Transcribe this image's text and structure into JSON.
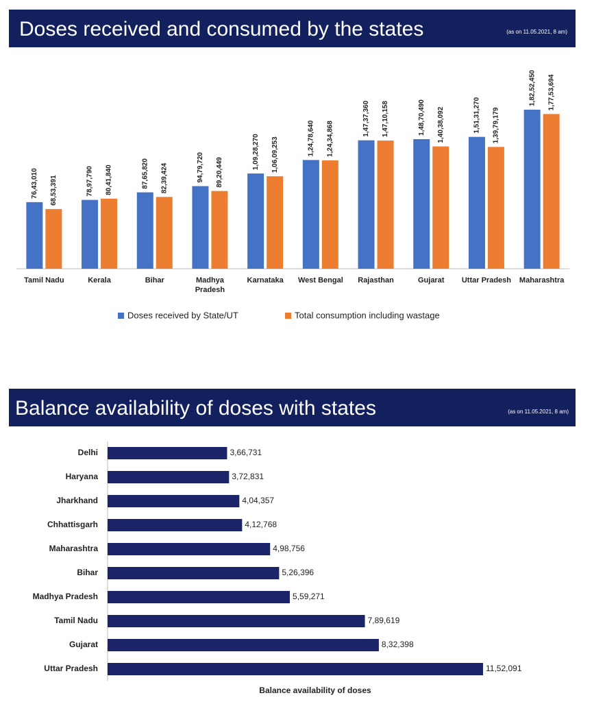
{
  "chart_data": [
    {
      "type": "bar",
      "title": "Doses received and consumed by the states",
      "subtitle": "(as on 11.05.2021, 8 am)",
      "categories": [
        "Tamil Nadu",
        "Kerala",
        "Bihar",
        "Madhya Pradesh",
        "Karnataka",
        "West Bengal",
        "Rajasthan",
        "Gujarat",
        "Uttar Pradesh",
        "Maharashtra"
      ],
      "series": [
        {
          "name": "Doses received by State/UT",
          "color": "#4472c4",
          "values": [
            7643010,
            7897790,
            8765820,
            9479720,
            10928270,
            12478640,
            14737360,
            14870490,
            15131270,
            18252450
          ],
          "value_labels": [
            "76,43,010",
            "78,97,790",
            "87,65,820",
            "94,79,720",
            "1,09,28,270",
            "1,24,78,640",
            "1,47,37,360",
            "1,48,70,490",
            "1,51,31,270",
            "1,82,52,450"
          ]
        },
        {
          "name": "Total consumption including wastage",
          "color": "#ed7d31",
          "values": [
            6853391,
            8041840,
            8239424,
            8920449,
            10609253,
            12434868,
            14710158,
            14038092,
            13979179,
            17753694
          ],
          "value_labels": [
            "68,53,391",
            "80,41,840",
            "82,39,424",
            "89,20,449",
            "1,06,09,253",
            "1,24,34,868",
            "1,47,10,158",
            "1,40,38,092",
            "1,39,79,179",
            "1,77,53,694"
          ]
        }
      ],
      "legend": "bottom"
    },
    {
      "type": "barh",
      "title": "Balance availability of doses with states",
      "subtitle": "(as on 11.05.2021, 8 am)",
      "x_label": "Balance availability of doses",
      "categories": [
        "Delhi",
        "Haryana",
        "Jharkhand",
        "Chhattisgarh",
        "Maharashtra",
        "Bihar",
        "Madhya Pradesh",
        "Tamil Nadu",
        "Gujarat",
        "Uttar Pradesh"
      ],
      "values": [
        366731,
        372831,
        404357,
        412768,
        498756,
        526396,
        559271,
        789619,
        832398,
        1152091
      ],
      "value_labels": [
        "3,66,731",
        "3,72,831",
        "4,04,357",
        "4,12,768",
        "4,98,756",
        "5,26,396",
        "5,59,271",
        "7,89,619",
        "8,32,398",
        "11,52,091"
      ],
      "color": "#1b2469"
    }
  ]
}
